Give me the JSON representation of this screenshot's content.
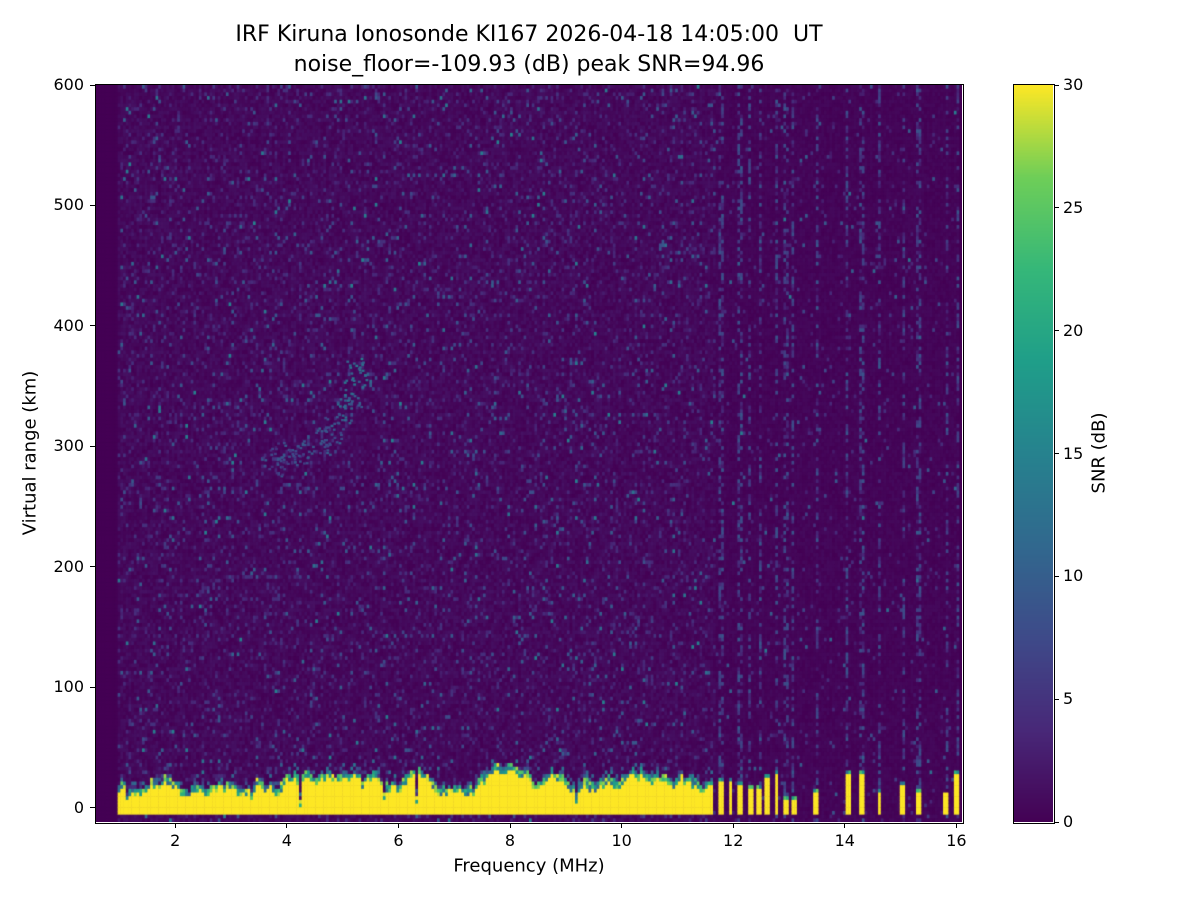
{
  "chart_data": {
    "type": "heatmap",
    "title": "IRF Kiruna Ionosonde KI167 2026-04-18 14:05:00  UT",
    "subtitle": "noise_floor=-109.93 (dB) peak SNR=94.96",
    "xlabel": "Frequency (MHz)",
    "ylabel": "Virtual range (km)",
    "colorbar_label": "SNR (dB)",
    "xlim": [
      0.58,
      16.1
    ],
    "ylim": [
      -12,
      600
    ],
    "clim": [
      0,
      30
    ],
    "x_ticks": [
      2,
      4,
      6,
      8,
      10,
      12,
      14,
      16
    ],
    "y_ticks": [
      0,
      100,
      200,
      300,
      400,
      500,
      600
    ],
    "colorbar_ticks": [
      0,
      5,
      10,
      15,
      20,
      25,
      30
    ],
    "colormap": "viridis",
    "grid": false,
    "legend": "colorbar-right",
    "colors": {
      "background_min": "#440154",
      "peak_max": "#fde725",
      "text": "#000000"
    },
    "colormap_stops": [
      [
        0.0,
        68,
        1,
        84
      ],
      [
        0.125,
        72,
        40,
        120
      ],
      [
        0.25,
        62,
        74,
        137
      ],
      [
        0.375,
        49,
        104,
        142
      ],
      [
        0.5,
        38,
        130,
        142
      ],
      [
        0.625,
        31,
        158,
        137
      ],
      [
        0.75,
        53,
        183,
        121
      ],
      [
        0.875,
        110,
        206,
        88
      ],
      [
        1.0,
        253,
        231,
        37
      ]
    ],
    "features": {
      "noise_floor_db": -109.93,
      "peak_snr_db": 94.96,
      "sweep_start_mhz": 0.95,
      "sweep_end_mhz": 16.06,
      "ground_clutter": {
        "snr_db": 30,
        "bottom_km": -5.5,
        "top_km_min": 16,
        "top_km_max": 38,
        "continuous_until_mhz": 11.65
      },
      "clutter_bars_mhz": [
        11.78,
        11.95,
        12.12,
        12.3,
        12.48,
        12.62,
        12.78,
        12.95,
        13.08,
        13.5,
        14.05,
        14.3,
        14.62,
        15.05,
        15.32,
        15.82,
        16.02
      ],
      "interference_lines_mhz": [
        11.78,
        12.12,
        12.3,
        12.48,
        12.78,
        12.95,
        13.08,
        13.5,
        14.05,
        14.3,
        14.62,
        15.05,
        15.32,
        15.82,
        16.02
      ],
      "echo_trace": [
        {
          "f": 3.75,
          "range_km": 288
        },
        {
          "f": 4.0,
          "range_km": 292
        },
        {
          "f": 4.3,
          "range_km": 297
        },
        {
          "f": 4.6,
          "range_km": 305
        },
        {
          "f": 4.85,
          "range_km": 315
        },
        {
          "f": 5.0,
          "range_km": 330
        },
        {
          "f": 5.15,
          "range_km": 345
        },
        {
          "f": 5.25,
          "range_km": 362
        }
      ]
    }
  }
}
